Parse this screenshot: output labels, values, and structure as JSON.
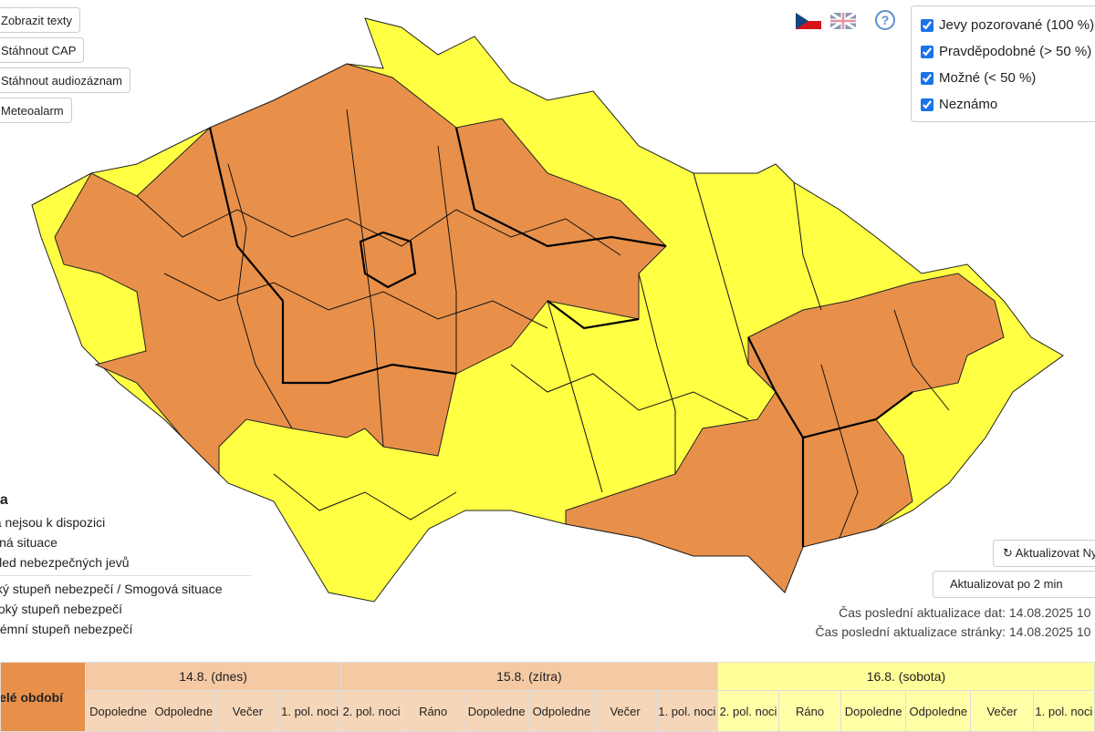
{
  "buttons": [
    "Zobrazit texty",
    "Stáhnout CAP",
    "Stáhnout audiozáznam",
    "Meteoalarm"
  ],
  "layer_filter": [
    "Jevy pozorované (100 %)",
    "Pravděpodobné (> 50 %)",
    "Možné (< 50 %)",
    "Neznámo"
  ],
  "legend": {
    "title": "Legenda",
    "items": [
      "Data nejsou k dispozici",
      "Běžná situace",
      "Výhled nebezpečných jevů",
      "Nízký stupeň nebezpečí / Smogová situace",
      "Vysoký stupeň nebezpečí",
      "Extrémní stupeň nebezpečí"
    ]
  },
  "refresh": {
    "button": "Aktualizovat Nyní",
    "interval": "Aktualizovat po 2 min"
  },
  "update_info": [
    {
      "label": "Čas poslední aktualizace dat:",
      "value": "14.08.2025 10"
    },
    {
      "label": "Čas poslední aktualizace stránky:",
      "value": "14.08.2025 10"
    }
  ],
  "table": {
    "overall": "Celé období",
    "days": [
      {
        "label": "14.8. (dnes)",
        "periods": [
          "Dopoledne",
          "Odpoledne",
          "Večer",
          "1. pol. noci"
        ]
      },
      {
        "label": "15.8. (zítra)",
        "periods": [
          "2. pol. noci",
          "Ráno",
          "Dopoledne",
          "Odpoledne",
          "Večer",
          "1. pol. noci"
        ]
      },
      {
        "label": "16.8. (sobota)",
        "periods": [
          "2. pol. noci",
          "Ráno",
          "Dopoledne",
          "Odpoledne",
          "Večer",
          "1. pol. noci"
        ]
      }
    ]
  }
}
